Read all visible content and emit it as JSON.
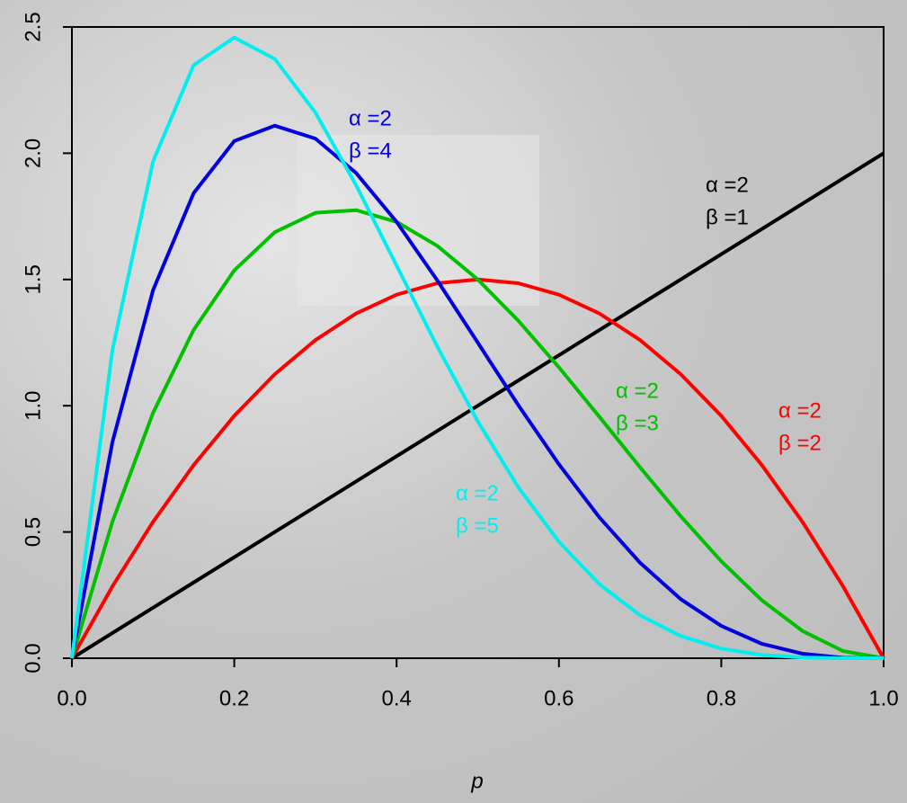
{
  "chart_data": {
    "type": "line",
    "xlabel": "p",
    "x": [
      0,
      0.05,
      0.1,
      0.15,
      0.2,
      0.25,
      0.3,
      0.35,
      0.4,
      0.45,
      0.5,
      0.55,
      0.6,
      0.65,
      0.7,
      0.75,
      0.8,
      0.85,
      0.9,
      0.95,
      1
    ],
    "xlim": [
      0,
      1
    ],
    "xticks": [
      {
        "value": 0,
        "label": "0.0"
      },
      0.2,
      0.4,
      0.6,
      0.8,
      {
        "value": 1,
        "label": "1.0"
      }
    ],
    "ylim": [
      0,
      2.5
    ],
    "yticks": [
      {
        "value": 0,
        "label": "0.0"
      },
      0.5,
      {
        "value": 1,
        "label": "1.0"
      },
      1.5,
      {
        "value": 2,
        "label": "2.0"
      },
      2.5
    ],
    "series": [
      {
        "label": [
          "α =2",
          "β =1"
        ],
        "color": "#000000",
        "values": [
          0,
          0.1,
          0.2,
          0.3,
          0.4,
          0.5,
          0.6,
          0.7,
          0.8,
          0.9,
          1,
          1.1,
          1.2,
          1.3,
          1.4,
          1.5,
          1.6,
          1.7,
          1.8,
          1.9,
          2
        ]
      },
      {
        "label": [
          "α =2",
          "β =2"
        ],
        "color": "#ff0000",
        "values": [
          0,
          0.285,
          0.54,
          0.765,
          0.96,
          1.125,
          1.26,
          1.365,
          1.44,
          1.485,
          1.5,
          1.485,
          1.44,
          1.365,
          1.26,
          1.125,
          0.96,
          0.765,
          0.54,
          0.285,
          0
        ]
      },
      {
        "label": [
          "α =2",
          "β =3"
        ],
        "color": "#00c000",
        "values": [
          0,
          0.5415,
          0.972,
          1.3005,
          1.536,
          1.6875,
          1.764,
          1.7745,
          1.728,
          1.6335,
          1.5,
          1.3365,
          1.152,
          0.9555,
          0.756,
          0.5625,
          0.384,
          0.2295,
          0.108,
          0.0285,
          0
        ]
      },
      {
        "label": [
          "α =2",
          "β =4"
        ],
        "color": "#0000dd",
        "values": [
          0,
          0.857,
          1.458,
          1.842,
          2.048,
          2.109,
          2.058,
          1.922,
          1.728,
          1.497,
          1.25,
          1.002,
          0.768,
          0.557,
          0.378,
          0.234,
          0.128,
          0.057,
          0.018,
          0.002,
          0
        ]
      },
      {
        "label": [
          "α =2",
          "β =5"
        ],
        "color": "#00eeee",
        "values": [
          0,
          1.222,
          1.968,
          2.349,
          2.458,
          2.373,
          2.161,
          1.874,
          1.555,
          1.235,
          0.938,
          0.677,
          0.461,
          0.293,
          0.17,
          0.088,
          0.038,
          0.013,
          0.003,
          0,
          0
        ]
      }
    ]
  }
}
